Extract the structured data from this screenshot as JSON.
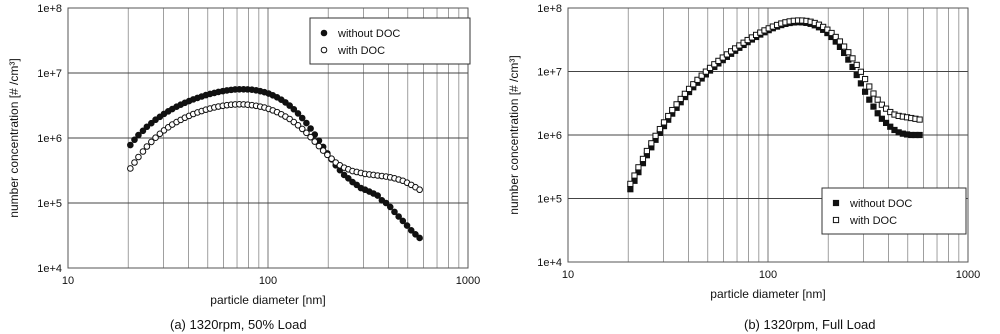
{
  "chart_data": [
    {
      "type": "scatter",
      "caption": "(a) 1320rpm, 50% Load",
      "xlabel": "particle diameter [nm]",
      "ylabel": "number concentration [# /cm³]",
      "x_scale": "log",
      "y_scale": "log",
      "xlim": [
        10,
        1000
      ],
      "ylim": [
        10000,
        100000000
      ],
      "x_ticks": [
        10,
        100,
        1000
      ],
      "x_tick_labels": [
        "10",
        "100",
        "1000"
      ],
      "y_ticks": [
        10000,
        100000,
        1000000,
        10000000,
        100000000
      ],
      "y_tick_labels": [
        "1e+4",
        "1e+5",
        "1e+6",
        "1e+7",
        "1e+8"
      ],
      "grid": true,
      "legend_position": "top-right",
      "x": [
        20.5,
        21.5,
        22.5,
        23.7,
        24.8,
        26.1,
        27.4,
        28.8,
        30.2,
        31.7,
        33.2,
        34.9,
        36.6,
        38.4,
        40.3,
        42.3,
        44.4,
        46.6,
        48.9,
        51.3,
        53.9,
        56.5,
        59.4,
        62.3,
        65.4,
        68.5,
        71.9,
        75.5,
        79.1,
        83.1,
        87.2,
        91.5,
        96.0,
        100.8,
        105.7,
        111.0,
        116.5,
        122.2,
        128.3,
        134.6,
        141.3,
        148.3,
        155.6,
        163.3,
        171.3,
        179.8,
        188.7,
        198.1,
        207.9,
        218.1,
        228.9,
        240.2,
        252.1,
        264.6,
        277.7,
        291.4,
        305.8,
        321.0,
        336.8,
        353.5,
        371.0,
        389.4,
        408.6,
        428.9,
        450.1,
        472.3,
        495.7,
        520.2,
        546.0,
        573.0
      ],
      "series": [
        {
          "name": "without DOC",
          "marker": "filled-circle",
          "values": [
            780000,
            940000,
            1110000,
            1290000,
            1490000,
            1690000,
            1910000,
            2120000,
            2350000,
            2570000,
            2790000,
            3030000,
            3250000,
            3480000,
            3700000,
            3930000,
            4140000,
            4350000,
            4570000,
            4760000,
            4940000,
            5120000,
            5260000,
            5400000,
            5500000,
            5580000,
            5610000,
            5620000,
            5600000,
            5530000,
            5420000,
            5250000,
            5070000,
            4820000,
            4540000,
            4230000,
            3890000,
            3530000,
            3150000,
            2770000,
            2390000,
            2030000,
            1700000,
            1400000,
            1130000,
            910000,
            730000,
            580000,
            470000,
            380000,
            320000,
            270000,
            240000,
            210000,
            190000,
            170000,
            160000,
            150000,
            140000,
            130000,
            110000,
            100000,
            87000,
            73000,
            62000,
            53000,
            45000,
            38000,
            33000,
            29000
          ]
        },
        {
          "name": "with DOC",
          "marker": "open-circle",
          "values": [
            340000,
            420000,
            510000,
            620000,
            740000,
            870000,
            1010000,
            1160000,
            1310000,
            1460000,
            1610000,
            1760000,
            1900000,
            2050000,
            2190000,
            2340000,
            2470000,
            2600000,
            2730000,
            2840000,
            2950000,
            3050000,
            3130000,
            3200000,
            3250000,
            3280000,
            3300000,
            3290000,
            3250000,
            3200000,
            3130000,
            3040000,
            2940000,
            2800000,
            2660000,
            2500000,
            2320000,
            2140000,
            1960000,
            1760000,
            1570000,
            1380000,
            1200000,
            1030000,
            880000,
            750000,
            640000,
            550000,
            480000,
            420000,
            380000,
            350000,
            330000,
            310000,
            300000,
            290000,
            280000,
            275000,
            270000,
            265000,
            260000,
            255000,
            248000,
            240000,
            230000,
            220000,
            205000,
            190000,
            175000,
            160000
          ]
        }
      ]
    },
    {
      "type": "scatter",
      "caption": "(b) 1320rpm, Full Load",
      "xlabel": "particle diameter [nm]",
      "ylabel": "number concentration [# /cm³]",
      "x_scale": "log",
      "y_scale": "log",
      "xlim": [
        10,
        1000
      ],
      "ylim": [
        10000,
        100000000
      ],
      "x_ticks": [
        10,
        100,
        1000
      ],
      "x_tick_labels": [
        "10",
        "100",
        "1000"
      ],
      "y_ticks": [
        10000,
        100000,
        1000000,
        10000000,
        100000000
      ],
      "y_tick_labels": [
        "1e+4",
        "1e+5",
        "1e+6",
        "1e+7",
        "1e+8"
      ],
      "grid": true,
      "legend_position": "bottom-right",
      "x": [
        20.5,
        21.5,
        22.5,
        23.7,
        24.8,
        26.1,
        27.4,
        28.8,
        30.2,
        31.7,
        33.2,
        34.9,
        36.6,
        38.4,
        40.3,
        42.3,
        44.4,
        46.6,
        48.9,
        51.3,
        53.9,
        56.5,
        59.4,
        62.3,
        65.4,
        68.5,
        71.9,
        75.5,
        79.1,
        83.1,
        87.2,
        91.5,
        96.0,
        100.8,
        105.7,
        111.0,
        116.5,
        122.2,
        128.3,
        134.6,
        141.3,
        148.3,
        155.6,
        163.3,
        171.3,
        179.8,
        188.7,
        198.1,
        207.9,
        218.1,
        228.9,
        240.2,
        252.1,
        264.6,
        277.7,
        291.4,
        305.8,
        321.0,
        336.8,
        353.5,
        371.0,
        389.4,
        408.6,
        428.9,
        450.1,
        472.3,
        495.7,
        520.2,
        546.0,
        573.0
      ],
      "series": [
        {
          "name": "without DOC",
          "marker": "filled-square",
          "values": [
            140000,
            190000,
            260000,
            360000,
            480000,
            640000,
            840000,
            1080000,
            1380000,
            1740000,
            2170000,
            2680000,
            3280000,
            3960000,
            4750000,
            5650000,
            6650000,
            7760000,
            9000000,
            10350000,
            11800000,
            13400000,
            15100000,
            17000000,
            19000000,
            21200000,
            23600000,
            26200000,
            29000000,
            31900000,
            35000000,
            38200000,
            41500000,
            44800000,
            48000000,
            51000000,
            53800000,
            56200000,
            58000000,
            59200000,
            59700000,
            59400000,
            58300000,
            56300000,
            53400000,
            49700000,
            45300000,
            40300000,
            35000000,
            29600000,
            24400000,
            19600000,
            15400000,
            11800000,
            8800000,
            6500000,
            4800000,
            3600000,
            2800000,
            2200000,
            1800000,
            1550000,
            1350000,
            1200000,
            1100000,
            1050000,
            1020000,
            1000000,
            1000000,
            1000000
          ]
        },
        {
          "name": "with DOC",
          "marker": "open-square",
          "values": [
            170000,
            230000,
            310000,
            420000,
            560000,
            740000,
            970000,
            1240000,
            1580000,
            1990000,
            2470000,
            3040000,
            3700000,
            4450000,
            5320000,
            6300000,
            7390000,
            8600000,
            9950000,
            11400000,
            13000000,
            14700000,
            16600000,
            18600000,
            20800000,
            23100000,
            25700000,
            28400000,
            31300000,
            34400000,
            37700000,
            41000000,
            44400000,
            47800000,
            51000000,
            54100000,
            57000000,
            59500000,
            61500000,
            62900000,
            63600000,
            63500000,
            62600000,
            60800000,
            58100000,
            54600000,
            50400000,
            45600000,
            40400000,
            35000000,
            29700000,
            24700000,
            20100000,
            16100000,
            12700000,
            9900000,
            7600000,
            5800000,
            4500000,
            3600000,
            3000000,
            2600000,
            2300000,
            2100000,
            2000000,
            1950000,
            1900000,
            1850000,
            1800000,
            1750000
          ]
        }
      ]
    }
  ]
}
